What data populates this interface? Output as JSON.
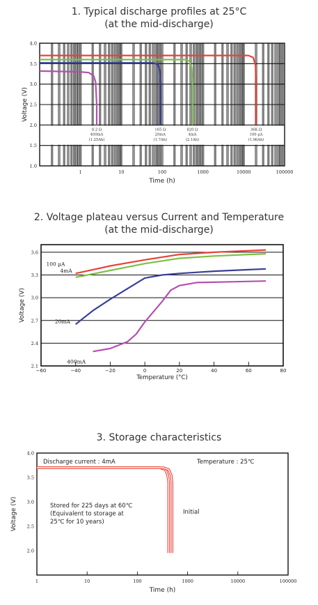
{
  "chart_data": [
    {
      "type": "line",
      "title": "1. Typical discharge profiles at 25°C",
      "subtitle": "(at  the mid-discharge)",
      "xlabel": "Time (h)",
      "ylabel": "Voltage (V)",
      "xscale": "log",
      "xlim": [
        0.1,
        100000
      ],
      "ylim": [
        1.0,
        4.0
      ],
      "grid": true,
      "x_ticks": [
        "1",
        "10",
        "100",
        "1000",
        "10000",
        "100000"
      ],
      "y_ticks": [
        "1.0",
        "1.5",
        "2.0",
        "2.5",
        "3.0",
        "3.5",
        "4.0"
      ],
      "series": [
        {
          "color": "#b44fb0",
          "plateau": 3.32,
          "end_x": 2.5,
          "label": [
            "8.2 Ω",
            "400mA",
            "(1.25Ah)"
          ],
          "points": [
            [
              0.1,
              3.32
            ],
            [
              1,
              3.3
            ],
            [
              1.6,
              3.28
            ],
            [
              2.1,
              3.2
            ],
            [
              2.35,
              3.05
            ],
            [
              2.5,
              2.5
            ],
            [
              2.5,
              2.0
            ]
          ]
        },
        {
          "color": "#3a3f9a",
          "plateau": 3.52,
          "end_x": 90,
          "label": [
            "165 Ω",
            "20mA",
            "(1.7Ah)"
          ],
          "points": [
            [
              0.1,
              3.52
            ],
            [
              60,
              3.52
            ],
            [
              78,
              3.48
            ],
            [
              86,
              3.35
            ],
            [
              90,
              3.0
            ],
            [
              90,
              2.0
            ]
          ]
        },
        {
          "color": "#7dc142",
          "plateau": 3.6,
          "end_x": 550,
          "label": [
            "820 Ω",
            "4mA",
            "(2.1Ah)"
          ],
          "points": [
            [
              0.1,
              3.6
            ],
            [
              380,
              3.6
            ],
            [
              470,
              3.56
            ],
            [
              530,
              3.4
            ],
            [
              550,
              3.0
            ],
            [
              550,
              2.0
            ]
          ]
        },
        {
          "color": "#e8423a",
          "plateau": 3.7,
          "end_x": 20000,
          "label": [
            "36K Ω",
            "100 µA",
            "(1.96Ah)"
          ],
          "points": [
            [
              0.1,
              3.7
            ],
            [
              13000,
              3.7
            ],
            [
              17000,
              3.65
            ],
            [
              19500,
              3.45
            ],
            [
              20000,
              3.0
            ],
            [
              20000,
              2.0
            ]
          ]
        }
      ]
    },
    {
      "type": "line",
      "title": "2. Voltage plateau versus Current and Temperature",
      "subtitle": "(at the mid-discharge)",
      "xlabel": "Temperature (°C)",
      "ylabel": "Voltage (V)",
      "xlim": [
        -60,
        80
      ],
      "ylim": [
        2.1,
        3.7
      ],
      "x_ticks": [
        "−60",
        "−40",
        "−20",
        "0",
        "20",
        "40",
        "60",
        "80"
      ],
      "y_ticks": [
        "2.1",
        "2.4",
        "2.7",
        "3.0",
        "3.3",
        "3.6"
      ],
      "series": [
        {
          "name": "100  µA",
          "color": "#e8423a",
          "points": [
            [
              -40,
              3.32
            ],
            [
              -20,
              3.42
            ],
            [
              0,
              3.5
            ],
            [
              20,
              3.57
            ],
            [
              40,
              3.6
            ],
            [
              60,
              3.62
            ],
            [
              70,
              3.63
            ]
          ]
        },
        {
          "name": "4mA",
          "color": "#7dc142",
          "points": [
            [
              -40,
              3.27
            ],
            [
              -20,
              3.36
            ],
            [
              0,
              3.45
            ],
            [
              20,
              3.52
            ],
            [
              40,
              3.55
            ],
            [
              60,
              3.57
            ],
            [
              70,
              3.58
            ]
          ]
        },
        {
          "name": "20mA",
          "color": "#3a3f9a",
          "points": [
            [
              -40,
              2.65
            ],
            [
              -30,
              2.83
            ],
            [
              -20,
              2.98
            ],
            [
              -10,
              3.12
            ],
            [
              0,
              3.26
            ],
            [
              10,
              3.3
            ],
            [
              20,
              3.32
            ],
            [
              40,
              3.35
            ],
            [
              60,
              3.37
            ],
            [
              70,
              3.38
            ]
          ]
        },
        {
          "name": "400mA",
          "color": "#b44fb0",
          "points": [
            [
              -30,
              2.29
            ],
            [
              -20,
              2.33
            ],
            [
              -10,
              2.42
            ],
            [
              -5,
              2.52
            ],
            [
              0,
              2.68
            ],
            [
              10,
              2.95
            ],
            [
              15,
              3.1
            ],
            [
              20,
              3.16
            ],
            [
              30,
              3.2
            ],
            [
              50,
              3.21
            ],
            [
              70,
              3.22
            ]
          ]
        }
      ]
    },
    {
      "type": "line",
      "title": "3. Storage characteristics",
      "xlabel": "Time (h)",
      "ylabel": "Voltage (V)",
      "xscale": "log",
      "xlim": [
        1,
        100000
      ],
      "ylim": [
        1.5,
        4.0
      ],
      "x_ticks": [
        "1",
        "10",
        "100",
        "1000",
        "10000",
        "100000"
      ],
      "y_ticks": [
        "2.0",
        "2.5",
        "3.0",
        "3.5",
        "4.0"
      ],
      "annotations": {
        "current": "Discharge current : 4mA",
        "temperature": "Temperature : 25℃",
        "stored": [
          "Stored for 225 days at 60℃",
          "(Equivalent to storage at",
          "25℃ for 10 years)"
        ],
        "initial": "Initial"
      },
      "series": [
        {
          "color": "#e8423a",
          "points": [
            [
              1,
              3.7
            ],
            [
              280,
              3.7
            ],
            [
              360,
              3.66
            ],
            [
              400,
              3.55
            ],
            [
              420,
              3.4
            ],
            [
              420,
              1.95
            ]
          ]
        },
        {
          "color": "#e8423a",
          "points": [
            [
              1,
              3.7
            ],
            [
              330,
              3.7
            ],
            [
              420,
              3.66
            ],
            [
              470,
              3.55
            ],
            [
              490,
              3.4
            ],
            [
              490,
              1.95
            ]
          ]
        }
      ]
    }
  ]
}
